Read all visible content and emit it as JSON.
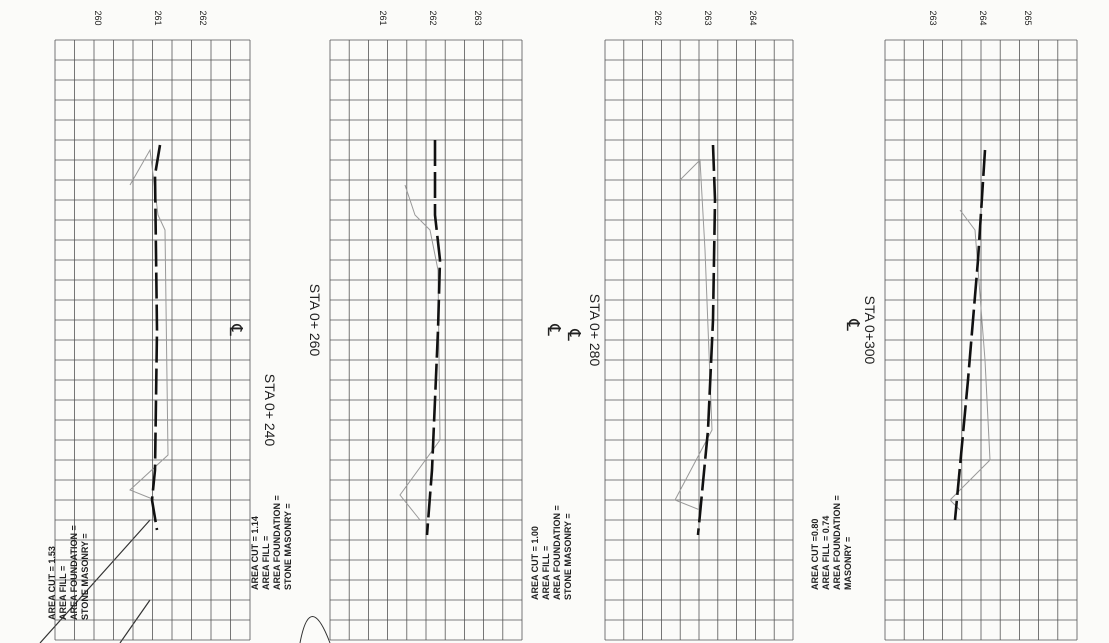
{
  "sections": [
    {
      "elevations": [
        "260",
        "261",
        "262"
      ],
      "station": "STA 0+ 240",
      "centerline": "℄",
      "areas": [
        "AREA CUT = 1.53",
        "AREA FILL =",
        "AREA FOUNDATION =",
        "STONE MASONRY ="
      ]
    },
    {
      "elevations": [
        "261",
        "262",
        "263"
      ],
      "station": "STA 0+ 260",
      "centerline": "℄",
      "areas": [
        "AREA CUT = 1.14",
        "AREA FILL =",
        "AREA FOUNDATION =",
        "STONE MASONRY ="
      ]
    },
    {
      "elevations": [
        "262",
        "263",
        "264"
      ],
      "station": "STA 0+ 280",
      "centerline": "℄",
      "areas": [
        "AREA CUT = 1.00",
        "AREA FILL =",
        "AREA FOUNDATION =",
        "STONE MASONRY ="
      ]
    },
    {
      "elevations": [
        "263",
        "264",
        "265"
      ],
      "station": "STA 0+300",
      "centerline": "℄",
      "areas": [
        "AREA CUT =0.80",
        "AREA FILL = 0.74",
        "AREA FOUNDATION =",
        "MASONRY ="
      ]
    }
  ]
}
